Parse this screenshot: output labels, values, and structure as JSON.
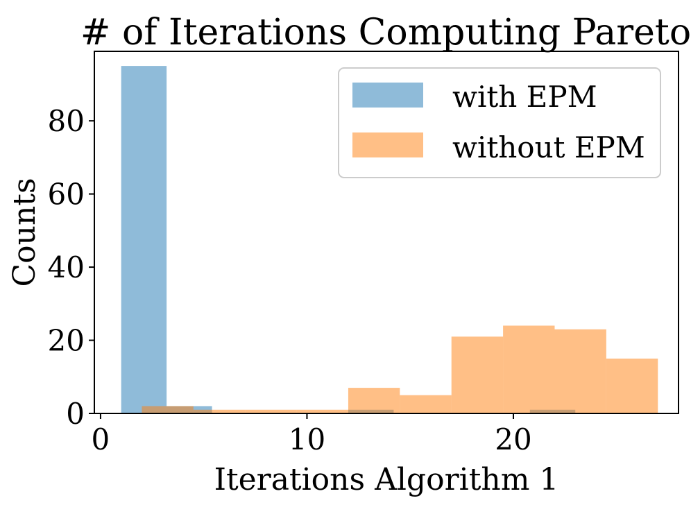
{
  "chart_data": {
    "type": "histogram",
    "title": "# of Iterations Computing Pareto",
    "xlabel": "Iterations Algorithm 1",
    "ylabel": "Counts",
    "xlim": [
      -0.3,
      28
    ],
    "ylim": [
      0,
      99
    ],
    "xticks": [
      0,
      10,
      20
    ],
    "yticks": [
      0,
      20,
      40,
      60,
      80
    ],
    "grid": false,
    "legend_position": "top-right",
    "series": [
      {
        "name": "with EPM",
        "color": "#1f77b4",
        "opacity": 0.5,
        "bins": [
          {
            "x0": 1.0,
            "x1": 3.2,
            "count": 95
          },
          {
            "x0": 3.2,
            "x1": 5.4,
            "count": 2
          },
          {
            "x0": 5.4,
            "x1": 7.6,
            "count": 0
          },
          {
            "x0": 7.6,
            "x1": 9.8,
            "count": 0
          },
          {
            "x0": 9.8,
            "x1": 12.0,
            "count": 0
          },
          {
            "x0": 12.0,
            "x1": 14.2,
            "count": 1
          },
          {
            "x0": 14.2,
            "x1": 16.4,
            "count": 0
          },
          {
            "x0": 16.4,
            "x1": 18.6,
            "count": 0
          },
          {
            "x0": 18.6,
            "x1": 20.8,
            "count": 0
          },
          {
            "x0": 20.8,
            "x1": 23.0,
            "count": 1
          }
        ]
      },
      {
        "name": "without EPM",
        "color": "#ff7f0e",
        "opacity": 0.5,
        "bins": [
          {
            "x0": 2.0,
            "x1": 4.5,
            "count": 2
          },
          {
            "x0": 4.5,
            "x1": 7.0,
            "count": 1
          },
          {
            "x0": 7.0,
            "x1": 9.5,
            "count": 1
          },
          {
            "x0": 9.5,
            "x1": 12.0,
            "count": 1
          },
          {
            "x0": 12.0,
            "x1": 14.5,
            "count": 7
          },
          {
            "x0": 14.5,
            "x1": 17.0,
            "count": 5
          },
          {
            "x0": 17.0,
            "x1": 19.5,
            "count": 21
          },
          {
            "x0": 19.5,
            "x1": 22.0,
            "count": 24
          },
          {
            "x0": 22.0,
            "x1": 24.5,
            "count": 23
          },
          {
            "x0": 24.5,
            "x1": 27.0,
            "count": 15
          }
        ]
      }
    ]
  }
}
